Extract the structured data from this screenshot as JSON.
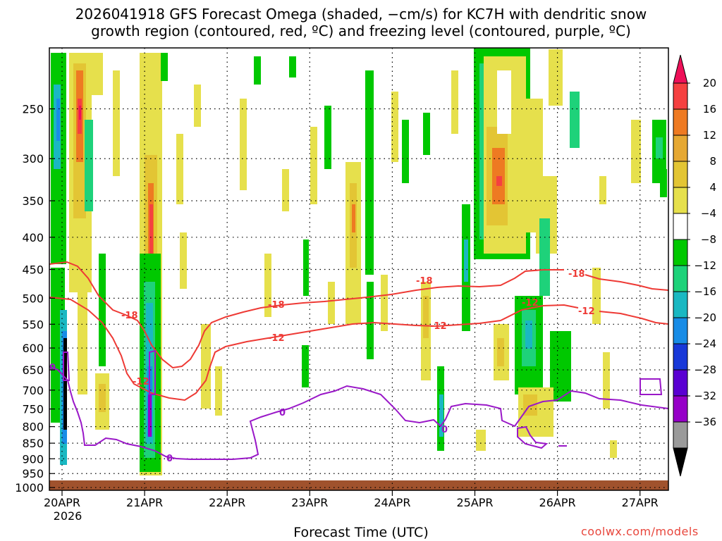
{
  "title_line1": "2026041918 GFS Forecast Omega (shaded, −cm/s) for KC7H with dendritic snow",
  "title_line2": "growth region (contoured, red, ºC) and freezing level (contoured, purple, ºC)",
  "credit": "coolwx.com/models",
  "chart_data": {
    "type": "heatmap",
    "title": "2026041918 GFS Forecast Omega (shaded, −cm/s) for KC7H with dendritic snow growth region (contoured, red, ºC) and freezing level (contoured, purple, ºC)",
    "xlabel": "Forecast Time (UTC)",
    "ylabel": "",
    "x_ticks": [
      "20APR",
      "21APR",
      "22APR",
      "23APR",
      "24APR",
      "25APR",
      "26APR",
      "27APR"
    ],
    "x_tick_year": "2026",
    "y_ticks": [
      250,
      300,
      350,
      400,
      450,
      500,
      550,
      600,
      650,
      700,
      750,
      800,
      850,
      900,
      950,
      1000
    ],
    "y_axis": "pressure (hPa), log scale, reversed",
    "ylim": [
      1010,
      200
    ],
    "colorbar": {
      "labels": [
        "20",
        "16",
        "12",
        "8",
        "4",
        "−4",
        "−8",
        "−12",
        "−16",
        "−20",
        "−24",
        "−28",
        "−32",
        "−36"
      ],
      "colors": [
        "#ee1058",
        "#f54040",
        "#ee7a22",
        "#e6a833",
        "#e3c534",
        "#e6e04c",
        "#ffffff",
        "#00c800",
        "#1ed27a",
        "#1ab8c2",
        "#188ce6",
        "#1838d8",
        "#5a00d2",
        "#9600c8",
        "#9a9a9a",
        "#000000"
      ]
    },
    "contours": [
      {
        "name": "dendritic snow growth region",
        "color": "#ee3a35",
        "levels": [
          "-18",
          "-12"
        ]
      },
      {
        "name": "freezing level",
        "color": "#9a18c8",
        "levels": [
          "0"
        ]
      }
    ],
    "contour_labels": [
      "-18",
      "-12",
      "-18",
      "-12",
      "-12",
      "-18",
      "-12",
      "-18",
      "-12",
      "0",
      "0",
      "0",
      "0"
    ]
  }
}
